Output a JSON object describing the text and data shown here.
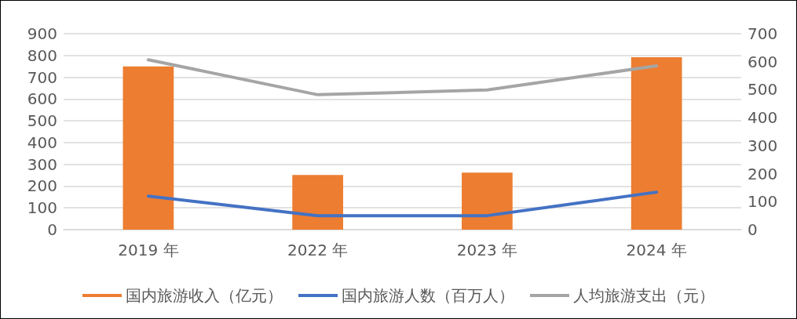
{
  "chart_data": {
    "type": "bar",
    "categories": [
      "2019 年",
      "2022 年",
      "2023 年",
      "2024 年"
    ],
    "series": [
      {
        "name": "国内旅游收入（亿元）",
        "color": "#ed7d31",
        "values": [
          750,
          251,
          262,
          792
        ]
      },
      {
        "name": "国内旅游人数（百万人）",
        "color": "#4472c4",
        "type": "line",
        "axis": "y2",
        "values": [
          120,
          50,
          50,
          134
        ]
      },
      {
        "name": "人均旅游支出（元）",
        "color": "#a5a5a5",
        "type": "line",
        "axis": "y2",
        "values": [
          607,
          482,
          499,
          585
        ]
      }
    ],
    "ylim": [
      0,
      900
    ],
    "yticks": [
      0,
      100,
      200,
      300,
      400,
      500,
      600,
      700,
      800,
      900
    ],
    "y2lim": [
      0,
      700
    ],
    "y2ticks": [
      0,
      100,
      200,
      300,
      400,
      500,
      600,
      700
    ],
    "grid": "y",
    "legend": "bottom",
    "marker": "none",
    "line_style": "solid"
  }
}
